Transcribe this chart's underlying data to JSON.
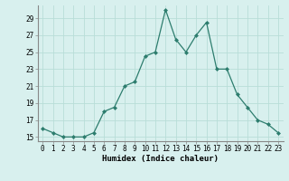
{
  "x": [
    0,
    1,
    2,
    3,
    4,
    5,
    6,
    7,
    8,
    9,
    10,
    11,
    12,
    13,
    14,
    15,
    16,
    17,
    18,
    19,
    20,
    21,
    22,
    23
  ],
  "y": [
    16,
    15.5,
    15,
    15,
    15,
    15.5,
    18,
    18.5,
    21,
    21.5,
    24.5,
    25,
    30,
    26.5,
    25,
    27,
    28.5,
    23,
    23,
    20,
    18.5,
    17,
    16.5,
    15.5
  ],
  "line_color": "#2d7d6e",
  "marker_color": "#2d7d6e",
  "bg_color": "#d8f0ee",
  "grid_color": "#b8ddd8",
  "xlabel": "Humidex (Indice chaleur)",
  "xlim": [
    -0.5,
    23.5
  ],
  "ylim": [
    14.5,
    30.5
  ],
  "yticks": [
    15,
    17,
    19,
    21,
    23,
    25,
    27,
    29
  ],
  "xticks": [
    0,
    1,
    2,
    3,
    4,
    5,
    6,
    7,
    8,
    9,
    10,
    11,
    12,
    13,
    14,
    15,
    16,
    17,
    18,
    19,
    20,
    21,
    22,
    23
  ],
  "xtick_labels": [
    "0",
    "1",
    "2",
    "3",
    "4",
    "5",
    "6",
    "7",
    "8",
    "9",
    "10",
    "11",
    "12",
    "13",
    "14",
    "15",
    "16",
    "17",
    "18",
    "19",
    "20",
    "21",
    "22",
    "23"
  ],
  "tick_fontsize": 5.5,
  "xlabel_fontsize": 6.5
}
